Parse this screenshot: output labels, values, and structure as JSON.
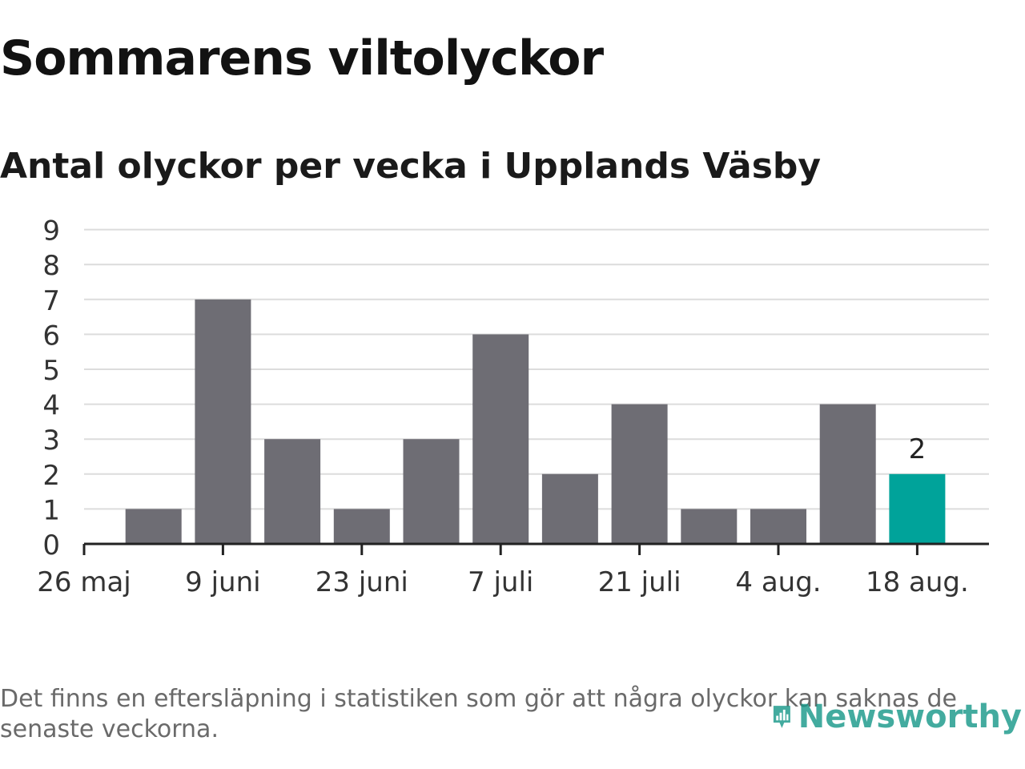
{
  "colors": {
    "bar": "#6e6d74",
    "highlight": "#00a39a",
    "grid": "#dcdcdc",
    "axis": "#222222",
    "logo": "#149687"
  },
  "chart_data": {
    "type": "bar",
    "title": "Sommarens viltolyckor",
    "subtitle": "Antal olyckor per vecka i Upplands Väsby",
    "xlabel": "",
    "ylabel": "",
    "ylim": [
      0,
      9
    ],
    "yticks": [
      0,
      1,
      2,
      3,
      4,
      5,
      6,
      7,
      8,
      9
    ],
    "grid": true,
    "legend": "none",
    "x_tick_labels": [
      "26 maj",
      "9 juni",
      "23 juni",
      "7 juli",
      "21 juli",
      "4 aug.",
      "18 aug."
    ],
    "values": [
      1,
      7,
      3,
      1,
      3,
      6,
      2,
      4,
      1,
      1,
      4,
      2
    ],
    "highlight_index": 11,
    "data_labels": [
      {
        "index": 11,
        "text": "2"
      }
    ]
  },
  "footnote": "Det finns en eftersläpning i statistiken som gör att några olyckor kan saknas de senaste veckorna.",
  "logo": {
    "text": "Newsworthy",
    "icon": "bar-chart-pin-icon"
  }
}
